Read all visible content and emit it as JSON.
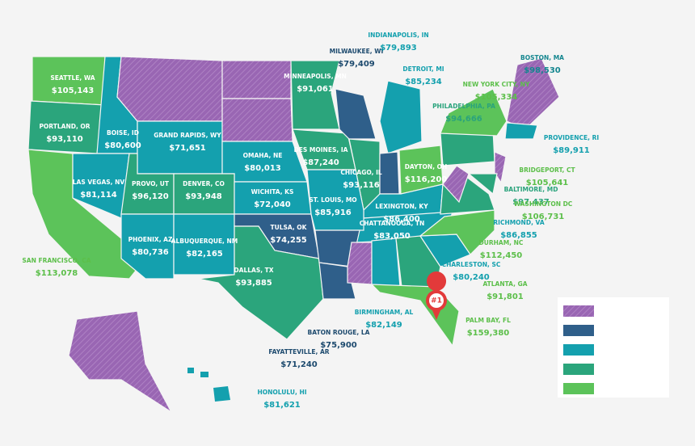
{
  "labels": [
    {
      "city": "SEATTLE, WA",
      "salary": "$105,143"
    },
    {
      "city": "PORTLAND, OR",
      "salary": "$93,110"
    },
    {
      "city": "BOISE, ID",
      "salary": "$80,600"
    },
    {
      "city": "GRAND RAPIDS, WY",
      "salary": "$71,651"
    },
    {
      "city": "OMAHA,  NE",
      "salary": "$80,013"
    },
    {
      "city": "DES MOINES, IA",
      "salary": "$87,240"
    },
    {
      "city": "MINNEAPOLIS, MN",
      "salary": "$91,061"
    },
    {
      "city": "MILWAUKEE, WI",
      "salary": "$79,409"
    },
    {
      "city": "INDIANAPOLIS, IN",
      "salary": "$79,893"
    },
    {
      "city": "DETROIT, MI",
      "salary": "$85,234"
    },
    {
      "city": "NEW YORK CITY, NY",
      "salary": "$105,334"
    },
    {
      "city": "BOSTON, MA",
      "salary": "$98,530"
    },
    {
      "city": "PHILADELPHIA, PA",
      "salary": "$94,666"
    },
    {
      "city": "PROVIDENCE, RI",
      "salary": "$89,911"
    },
    {
      "city": "BRIDGEPORT, CT",
      "salary": "$105,641"
    },
    {
      "city": "BALTIMORE, MD",
      "salary": "$97,437"
    },
    {
      "city": "WASHINGTON DC",
      "salary": "$106,731"
    },
    {
      "city": "RICHMOND, VA",
      "salary": "$86,855"
    },
    {
      "city": "DURHAM, NC",
      "salary": "$112,450"
    },
    {
      "city": "CHARLESTON, SC",
      "salary": "$80,240"
    },
    {
      "city": "ATLANTA, GA",
      "salary": "$91,801"
    },
    {
      "city": "PALM BAY, FL",
      "salary": "$159,380"
    },
    {
      "city": "DAYTON, OH",
      "salary": "$116,200"
    },
    {
      "city": "CHICAGO, IL",
      "salary": "$93,116"
    },
    {
      "city": "LEXINGTON, KY",
      "salary": "$86,400"
    },
    {
      "city": "CHATTANOOGA, TN",
      "salary": "$83,050"
    },
    {
      "city": "ST. LOUIS, MO",
      "salary": "$85,916"
    },
    {
      "city": "WICHITA, KS",
      "salary": "$72,040"
    },
    {
      "city": "TULSA, OK",
      "salary": "$74,255"
    },
    {
      "city": "DENVER, CO",
      "salary": "$93,948"
    },
    {
      "city": "PROVO, UT",
      "salary": "$96,120"
    },
    {
      "city": "LAS VEGAS, NV",
      "salary": "$81,114"
    },
    {
      "city": "PHOENIX, AZ",
      "salary": "$80,736"
    },
    {
      "city": "ALBUQUERQUE, NM",
      "salary": "$82,165"
    },
    {
      "city": "DALLAS, TX",
      "salary": "$93,885"
    },
    {
      "city": "BIRMINGHAM, AL",
      "salary": "$82,149"
    },
    {
      "city": "BATON ROUGE, LA",
      "salary": "$75,900"
    },
    {
      "city": "FAYATTEVILLE, AR",
      "salary": "$71,240"
    },
    {
      "city": "SAN FRANCISCO, CA",
      "salary": "$113,078"
    },
    {
      "city": "HONOLULU, HI",
      "salary": "$81,621"
    }
  ],
  "marker": "#1"
}
